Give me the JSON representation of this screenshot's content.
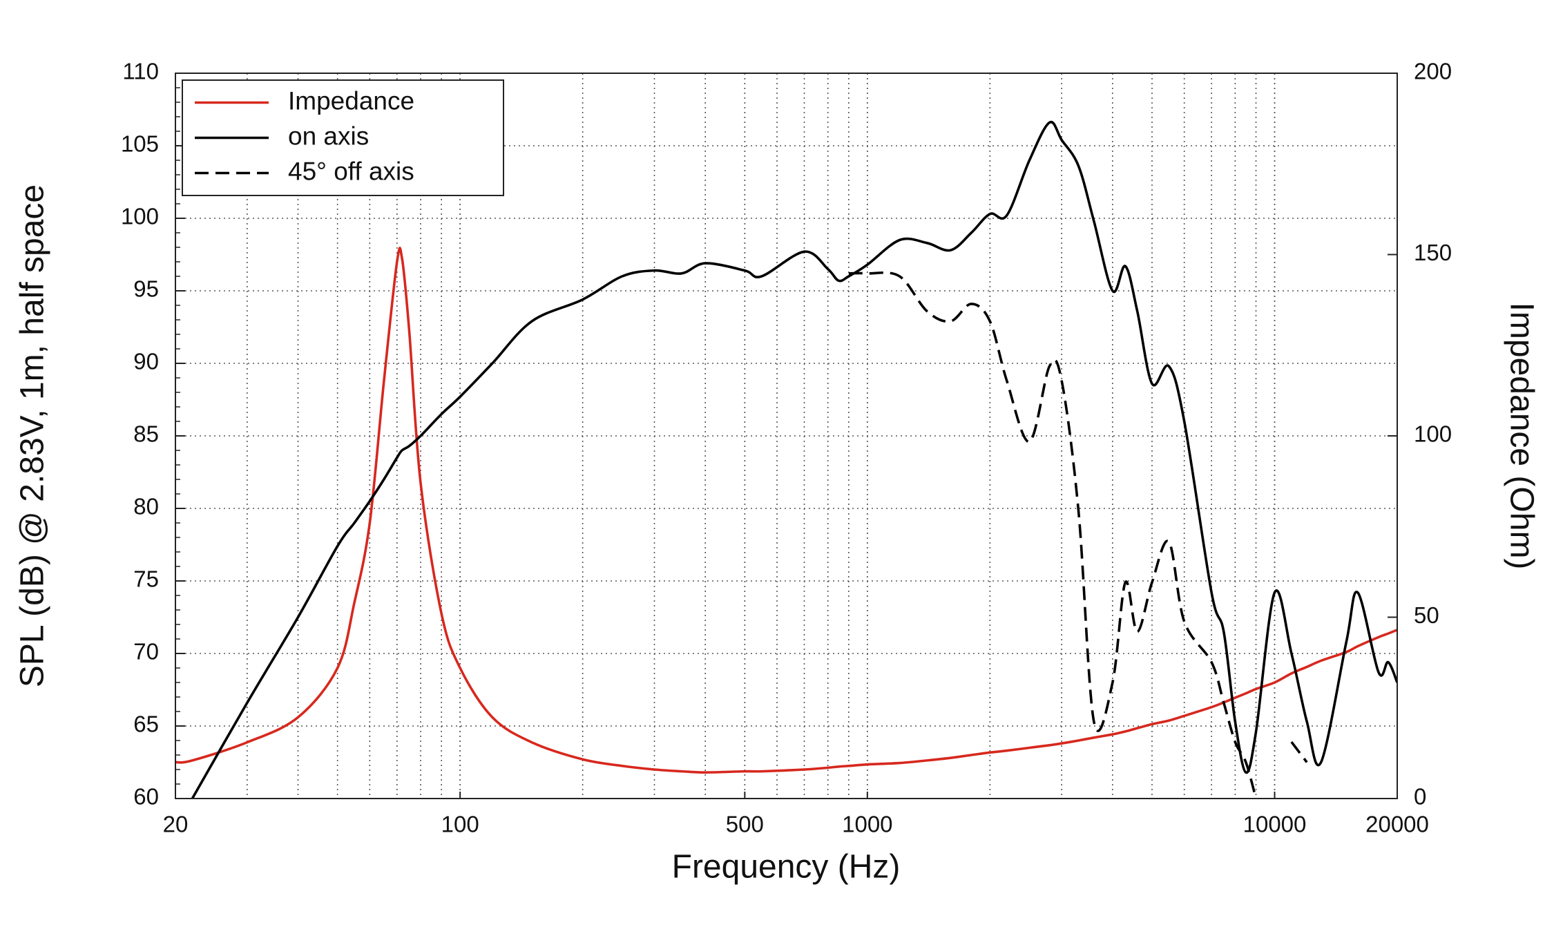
{
  "chart_data": {
    "type": "line",
    "x_label": "Frequency (Hz)",
    "y_label": "SPL (dB) @ 2.83V, 1m, half space",
    "y2_label": "Impedance (Ohm)",
    "xlog": true,
    "grid": true,
    "legend": "upper left",
    "xlim": [
      20,
      20000
    ],
    "xticks": [
      20,
      100,
      500,
      1000,
      10000,
      20000
    ],
    "ylim": [
      60,
      110
    ],
    "yticks": [
      60,
      65,
      70,
      75,
      80,
      85,
      90,
      95,
      100,
      105,
      110
    ],
    "y2lim": [
      0,
      200
    ],
    "y2ticks": [
      0,
      50,
      100,
      150,
      200
    ],
    "x": [
      20,
      22,
      30,
      40,
      50,
      55,
      60,
      65,
      70,
      72,
      75,
      80,
      90,
      100,
      120,
      150,
      200,
      250,
      300,
      350,
      400,
      500,
      550,
      700,
      800,
      850,
      900,
      1000,
      1200,
      1400,
      1600,
      1800,
      2000,
      2200,
      2500,
      2800,
      3000,
      3300,
      3600,
      4000,
      4300,
      4600,
      5000,
      5500,
      6000,
      7000,
      7500,
      8000,
      8500,
      9000,
      10000,
      11000,
      12000,
      13000,
      15000,
      16000,
      18000,
      19000,
      20000
    ],
    "series": [
      {
        "name": "Impedance",
        "color": "#d7281e",
        "axis": "y2",
        "dash": false,
        "values": [
          10,
          10.5,
          15.5,
          22.4,
          36,
          54,
          76,
          115,
          148,
          149,
          129,
          87,
          51,
          36,
          22.4,
          15.5,
          10.8,
          9,
          8,
          7.5,
          7.2,
          7.5,
          7.5,
          8,
          8.5,
          8.8,
          9,
          9.4,
          9.8,
          10.5,
          11.2,
          12,
          12.7,
          13.2,
          14,
          14.7,
          15.2,
          16,
          16.8,
          17.7,
          18.5,
          19.4,
          20.5,
          21.5,
          22.8,
          25.2,
          26.5,
          27.8,
          29,
          30.2,
          32,
          34.5,
          36.3,
          38,
          40.4,
          42,
          44.5,
          45.5,
          46.5
        ]
      },
      {
        "name": "on axis",
        "color": "#000000",
        "axis": "y",
        "dash": false,
        "values": [
          null,
          60,
          66.6,
          72.5,
          77.4,
          79,
          80.5,
          82,
          83.5,
          84,
          84.3,
          85,
          86.5,
          87.7,
          90,
          92.9,
          94.4,
          96,
          96.4,
          96.2,
          96.9,
          96.4,
          96,
          97.7,
          96.5,
          95.7,
          96,
          96.8,
          98.5,
          98.3,
          97.8,
          99,
          100.3,
          100.2,
          104,
          106.6,
          105.4,
          103.6,
          99.8,
          95,
          96.7,
          93.6,
          88.6,
          89.8,
          86,
          74.2,
          71.5,
          65.3,
          61.8,
          64.6,
          74.2,
          70,
          65.3,
          62.5,
          70.8,
          74.2,
          68.7,
          69.4,
          68
        ]
      },
      {
        "name": "45° off axis",
        "color": "#000000",
        "axis": "y",
        "dash": true,
        "values": [
          null,
          null,
          null,
          null,
          null,
          null,
          null,
          null,
          null,
          null,
          null,
          null,
          null,
          null,
          null,
          null,
          null,
          null,
          null,
          null,
          null,
          null,
          null,
          null,
          null,
          null,
          96.2,
          96.2,
          96,
          93.6,
          92.9,
          94.1,
          92.9,
          88.8,
          84.6,
          89.8,
          88.8,
          79.8,
          65.3,
          68,
          74.9,
          71.5,
          74.9,
          77.7,
          72.2,
          69.4,
          66.6,
          63.9,
          62.5,
          60,
          null,
          63.9,
          62.5,
          null,
          null,
          null,
          null,
          null,
          null
        ]
      }
    ]
  }
}
